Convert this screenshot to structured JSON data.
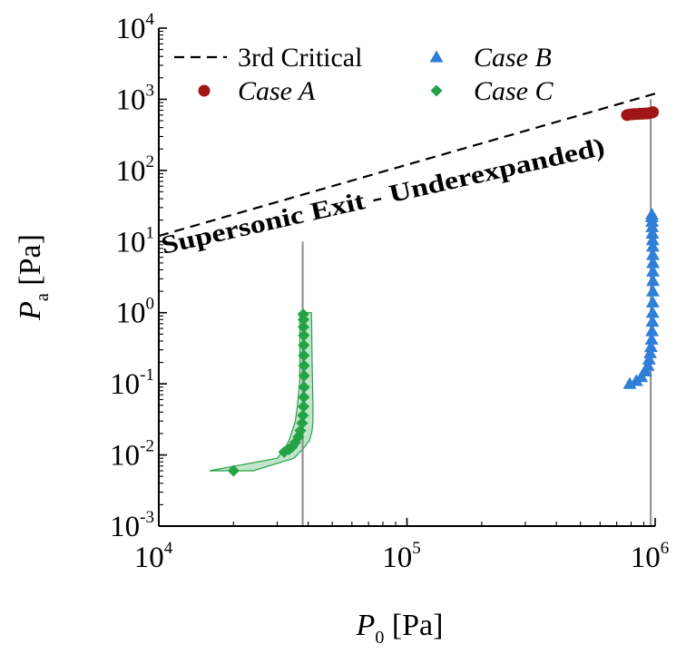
{
  "chart_data": {
    "type": "scatter",
    "x_scale": "log",
    "y_scale": "log",
    "xlim": [
      10000,
      1000000
    ],
    "ylim": [
      0.001,
      10000
    ],
    "x_ticks": [
      10000,
      100000,
      1000000
    ],
    "y_ticks": [
      0.001,
      0.01,
      0.1,
      1,
      10,
      100,
      1000,
      10000
    ],
    "x_tick_labels": [
      {
        "base": "10",
        "exp": "4"
      },
      {
        "base": "10",
        "exp": "5"
      },
      {
        "base": "10",
        "exp": "6"
      }
    ],
    "y_tick_labels": [
      {
        "base": "10",
        "exp": "-3"
      },
      {
        "base": "10",
        "exp": "-2"
      },
      {
        "base": "10",
        "exp": "-1"
      },
      {
        "base": "10",
        "exp": "0"
      },
      {
        "base": "10",
        "exp": "1"
      },
      {
        "base": "10",
        "exp": "2"
      },
      {
        "base": "10",
        "exp": "3"
      },
      {
        "base": "10",
        "exp": "4"
      }
    ],
    "xlabel": {
      "main": "P",
      "sub": "0",
      "unit": " [Pa]"
    },
    "ylabel": {
      "main": "P",
      "sub": "a",
      "unit": " [Pa]"
    },
    "grid": false,
    "legend": {
      "placement": "top",
      "entries": [
        {
          "label": "3rd Critical",
          "style": "dashed",
          "color": "#000000"
        },
        {
          "label": "Case A",
          "style": "circle",
          "color": "#A01616"
        },
        {
          "label": "Case B",
          "style": "triangle",
          "color": "#2F7FD8"
        },
        {
          "label": "Case C",
          "style": "diamond",
          "color": "#23A345"
        }
      ]
    },
    "annotations": [
      {
        "text": "Supersonic Exit - Underexpanded)"
      }
    ],
    "reference_lines": [
      {
        "type": "vertical",
        "x": 38000,
        "y_range": [
          0.001,
          10
        ],
        "color": "#8a8a8a"
      },
      {
        "type": "vertical",
        "x": 960000,
        "y_range": [
          0.001,
          1000
        ],
        "color": "#8a8a8a"
      }
    ],
    "critical_line": {
      "color": "#000000",
      "points": [
        [
          10000,
          12
        ],
        [
          1000000,
          1200
        ]
      ]
    },
    "series": [
      {
        "name": "Case A",
        "marker": "circle",
        "color": "#A01616",
        "x": [
          770000,
          790000,
          810000,
          830000,
          850000,
          870000,
          890000,
          910000,
          930000,
          950000,
          970000,
          980000
        ],
        "y": [
          600,
          610,
          615,
          620,
          620,
          625,
          625,
          630,
          630,
          640,
          650,
          660
        ]
      },
      {
        "name": "Case B",
        "marker": "triangle",
        "color": "#2F7FD8",
        "x": [
          790000,
          840000,
          880000,
          915000,
          935000,
          945000,
          955000,
          962000,
          968000,
          972000,
          975000,
          977000,
          978000,
          979000,
          980000,
          980000,
          980000,
          979000,
          978000,
          977000,
          975000,
          973000,
          972000,
          970000,
          970000
        ],
        "y": [
          0.1,
          0.11,
          0.125,
          0.15,
          0.18,
          0.22,
          0.27,
          0.33,
          0.42,
          0.55,
          0.75,
          1.0,
          1.4,
          2.0,
          2.8,
          3.8,
          5.0,
          6.5,
          8.5,
          10.5,
          13,
          16,
          19,
          22,
          24
        ]
      },
      {
        "name": "Case C",
        "marker": "diamond",
        "color": "#23A345",
        "x": [
          20000,
          32000,
          33500,
          34500,
          35500,
          36500,
          37200,
          37800,
          38100,
          38300,
          38400,
          38500,
          38500,
          38500,
          38400,
          38400,
          38400,
          38300,
          38300,
          38200
        ],
        "y": [
          0.006,
          0.011,
          0.012,
          0.013,
          0.015,
          0.018,
          0.022,
          0.028,
          0.036,
          0.048,
          0.065,
          0.09,
          0.13,
          0.18,
          0.25,
          0.35,
          0.48,
          0.63,
          0.8,
          0.95
        ]
      }
    ],
    "uncertainty_band": {
      "series": "Case C",
      "color": "#23A345",
      "x_low": [
        16000,
        30000,
        32000,
        33500,
        34500,
        35500,
        36200,
        36700,
        37000,
        37000,
        37000,
        37000,
        37000
      ],
      "x_high": [
        24000,
        35000,
        38000,
        40500,
        41500,
        41800,
        41800,
        41700,
        41600,
        41500,
        41400,
        41300,
        41200
      ],
      "y": [
        0.006,
        0.009,
        0.012,
        0.016,
        0.022,
        0.03,
        0.05,
        0.08,
        0.12,
        0.2,
        0.35,
        0.6,
        1.0
      ]
    }
  }
}
